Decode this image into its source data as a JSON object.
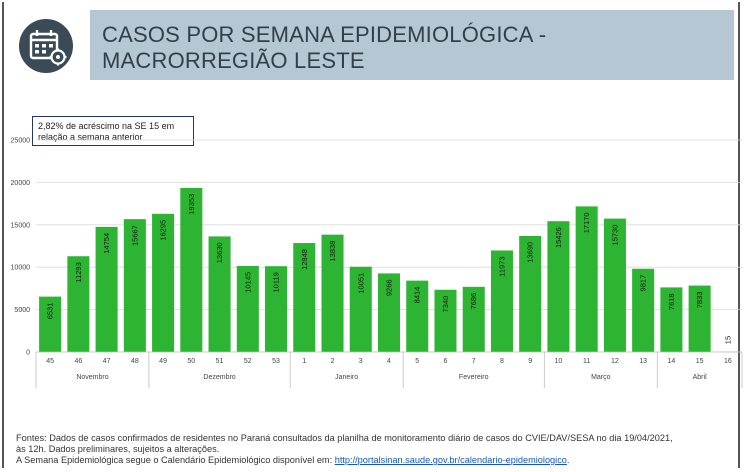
{
  "header": {
    "title_line1": "CASOS POR SEMANA EPIDEMIOLÓGICA -",
    "title_line2": "MACRORREGIÃO LESTE",
    "icon": "calendar-gear-icon",
    "icon_color": "#3a4b57",
    "title_bg": "#b4c7d3"
  },
  "annotation": {
    "line1": "2,82% de acréscimo na SE 15 em",
    "line2": "relação a semana anterior"
  },
  "chart_data": {
    "type": "bar",
    "categories": [
      "45",
      "46",
      "47",
      "48",
      "49",
      "50",
      "51",
      "52",
      "53",
      "1",
      "2",
      "3",
      "4",
      "5",
      "6",
      "7",
      "8",
      "9",
      "10",
      "11",
      "12",
      "13",
      "14",
      "15",
      "16"
    ],
    "values": [
      6531,
      11293,
      14754,
      15667,
      16295,
      19353,
      13630,
      10145,
      10119,
      12848,
      13838,
      10051,
      9266,
      8414,
      7340,
      7686,
      11973,
      13690,
      15426,
      17170,
      15730,
      9817,
      7618,
      7833,
      15
    ],
    "value_labels": [
      "6531",
      "11293",
      "14754",
      "15667",
      "16295",
      "19353",
      "13630",
      "10145",
      "10119",
      "12848",
      "13838",
      "10051",
      "9266",
      "8414",
      "7340",
      "7686",
      "11973",
      "13690",
      "15426",
      "17170",
      "15730",
      "9817",
      "7618",
      "7833",
      "15"
    ],
    "y_ticks": [
      "0",
      "5000",
      "10000",
      "15000",
      "20000",
      "25000"
    ],
    "ylim": [
      0,
      25000
    ],
    "months": [
      {
        "label": "Novembro",
        "start": 0,
        "count": 4
      },
      {
        "label": "Dezembro",
        "start": 4,
        "count": 5
      },
      {
        "label": "Janeiro",
        "start": 9,
        "count": 4
      },
      {
        "label": "Fevereiro",
        "start": 13,
        "count": 5
      },
      {
        "label": "Março",
        "start": 18,
        "count": 4
      },
      {
        "label": "Abril",
        "start": 22,
        "count": 3
      }
    ],
    "bar_color": "#2db432",
    "grid": true
  },
  "footer": {
    "line1": "Fontes: Dados de casos confirmados de residentes no Paraná consultados da planilha de monitoramento diário de casos do CVIE/DAV/SESA no dia 19/04/2021,",
    "line2": "às 12h. Dados preliminares, sujeitos a alterações.",
    "line3_prefix": "A Semana Epidemiológica segue o Calendário Epidemiológico disponível em: ",
    "link": "http://portalsinan.saude.gov.br/calendario-epidemiologico",
    "line3_suffix": "."
  }
}
